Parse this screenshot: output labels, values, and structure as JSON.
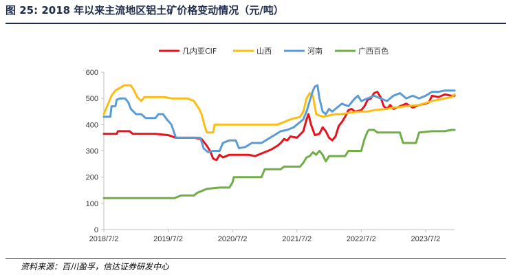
{
  "title": "图 25:  2018 年以来主流地区铝土矿价格变动情况（元/吨）",
  "source": "资料来源：百川盈孚，信达证券研发中心",
  "chart_data": {
    "type": "line",
    "ylim": [
      0,
      600
    ],
    "yticks": [
      0,
      100,
      200,
      300,
      400,
      500,
      600
    ],
    "xlim": [
      2018.5,
      2023.95
    ],
    "xticks": [
      {
        "x": 2018.5,
        "label": "2018/7/2"
      },
      {
        "x": 2019.5,
        "label": "2019/7/2"
      },
      {
        "x": 2020.5,
        "label": "2020/7/2"
      },
      {
        "x": 2021.5,
        "label": "2021/7/2"
      },
      {
        "x": 2022.5,
        "label": "2022/7/2"
      },
      {
        "x": 2023.5,
        "label": "2023/7/2"
      }
    ],
    "grid": false,
    "legend_position": "top",
    "series": [
      {
        "name": "几内亚CIF",
        "color": "#e8121c",
        "points": [
          [
            2018.5,
            365
          ],
          [
            2018.7,
            365
          ],
          [
            2018.72,
            375
          ],
          [
            2018.9,
            375
          ],
          [
            2018.95,
            365
          ],
          [
            2019.3,
            365
          ],
          [
            2019.5,
            360
          ],
          [
            2019.62,
            350
          ],
          [
            2019.9,
            350
          ],
          [
            2020.02,
            345
          ],
          [
            2020.1,
            320
          ],
          [
            2020.15,
            300
          ],
          [
            2020.2,
            270
          ],
          [
            2020.25,
            265
          ],
          [
            2020.3,
            285
          ],
          [
            2020.35,
            275
          ],
          [
            2020.45,
            285
          ],
          [
            2020.6,
            285
          ],
          [
            2020.75,
            285
          ],
          [
            2020.85,
            280
          ],
          [
            2020.95,
            290
          ],
          [
            2021.1,
            305
          ],
          [
            2021.2,
            320
          ],
          [
            2021.25,
            330
          ],
          [
            2021.3,
            345
          ],
          [
            2021.35,
            340
          ],
          [
            2021.4,
            355
          ],
          [
            2021.5,
            350
          ],
          [
            2021.6,
            375
          ],
          [
            2021.65,
            420
          ],
          [
            2021.68,
            440
          ],
          [
            2021.72,
            400
          ],
          [
            2021.78,
            360
          ],
          [
            2021.85,
            365
          ],
          [
            2021.9,
            390
          ],
          [
            2021.95,
            375
          ],
          [
            2022.0,
            350
          ],
          [
            2022.05,
            340
          ],
          [
            2022.1,
            355
          ],
          [
            2022.15,
            395
          ],
          [
            2022.2,
            410
          ],
          [
            2022.25,
            430
          ],
          [
            2022.3,
            455
          ],
          [
            2022.35,
            460
          ],
          [
            2022.4,
            450
          ],
          [
            2022.5,
            455
          ],
          [
            2022.55,
            470
          ],
          [
            2022.6,
            495
          ],
          [
            2022.65,
            500
          ],
          [
            2022.7,
            520
          ],
          [
            2022.75,
            525
          ],
          [
            2022.8,
            505
          ],
          [
            2022.85,
            470
          ],
          [
            2022.9,
            460
          ],
          [
            2022.95,
            475
          ],
          [
            2023.0,
            460
          ],
          [
            2023.1,
            470
          ],
          [
            2023.2,
            480
          ],
          [
            2023.3,
            465
          ],
          [
            2023.4,
            475
          ],
          [
            2023.5,
            480
          ],
          [
            2023.55,
            485
          ],
          [
            2023.6,
            510
          ],
          [
            2023.7,
            505
          ],
          [
            2023.8,
            515
          ],
          [
            2023.9,
            510
          ],
          [
            2023.95,
            510
          ]
        ]
      },
      {
        "name": "山西",
        "color": "#fbbd13",
        "points": [
          [
            2018.5,
            440
          ],
          [
            2018.55,
            470
          ],
          [
            2018.62,
            510
          ],
          [
            2018.68,
            530
          ],
          [
            2018.75,
            540
          ],
          [
            2018.82,
            550
          ],
          [
            2018.92,
            550
          ],
          [
            2018.97,
            530
          ],
          [
            2019.02,
            505
          ],
          [
            2019.08,
            490
          ],
          [
            2019.13,
            505
          ],
          [
            2019.3,
            505
          ],
          [
            2019.45,
            505
          ],
          [
            2019.55,
            500
          ],
          [
            2019.8,
            500
          ],
          [
            2019.9,
            490
          ],
          [
            2019.98,
            460
          ],
          [
            2020.02,
            440
          ],
          [
            2020.06,
            400
          ],
          [
            2020.1,
            370
          ],
          [
            2020.2,
            370
          ],
          [
            2020.22,
            400
          ],
          [
            2020.5,
            400
          ],
          [
            2020.8,
            400
          ],
          [
            2021.0,
            400
          ],
          [
            2021.2,
            400
          ],
          [
            2021.4,
            420
          ],
          [
            2021.55,
            430
          ],
          [
            2021.6,
            450
          ],
          [
            2021.65,
            500
          ],
          [
            2021.7,
            520
          ],
          [
            2021.75,
            510
          ],
          [
            2021.8,
            440
          ],
          [
            2021.9,
            430
          ],
          [
            2022.0,
            435
          ],
          [
            2022.1,
            440
          ],
          [
            2022.2,
            440
          ],
          [
            2022.3,
            445
          ],
          [
            2022.5,
            450
          ],
          [
            2022.6,
            450
          ],
          [
            2022.7,
            455
          ],
          [
            2022.9,
            460
          ],
          [
            2023.0,
            465
          ],
          [
            2023.2,
            470
          ],
          [
            2023.4,
            475
          ],
          [
            2023.6,
            490
          ],
          [
            2023.7,
            495
          ],
          [
            2023.8,
            500
          ],
          [
            2023.9,
            505
          ],
          [
            2023.95,
            515
          ]
        ]
      },
      {
        "name": "河南",
        "color": "#5b9bd5",
        "points": [
          [
            2018.5,
            430
          ],
          [
            2018.55,
            430
          ],
          [
            2018.6,
            430
          ],
          [
            2018.62,
            470
          ],
          [
            2018.68,
            470
          ],
          [
            2018.7,
            495
          ],
          [
            2018.75,
            500
          ],
          [
            2018.83,
            500
          ],
          [
            2018.88,
            485
          ],
          [
            2018.92,
            460
          ],
          [
            2019.0,
            440
          ],
          [
            2019.08,
            440
          ],
          [
            2019.15,
            425
          ],
          [
            2019.3,
            425
          ],
          [
            2019.35,
            440
          ],
          [
            2019.42,
            440
          ],
          [
            2019.48,
            420
          ],
          [
            2019.55,
            400
          ],
          [
            2019.62,
            350
          ],
          [
            2019.8,
            350
          ],
          [
            2020.0,
            350
          ],
          [
            2020.05,
            310
          ],
          [
            2020.12,
            295
          ],
          [
            2020.2,
            300
          ],
          [
            2020.3,
            300
          ],
          [
            2020.35,
            330
          ],
          [
            2020.45,
            340
          ],
          [
            2020.55,
            340
          ],
          [
            2020.6,
            310
          ],
          [
            2020.7,
            315
          ],
          [
            2020.8,
            330
          ],
          [
            2020.95,
            330
          ],
          [
            2021.05,
            345
          ],
          [
            2021.15,
            360
          ],
          [
            2021.25,
            375
          ],
          [
            2021.35,
            380
          ],
          [
            2021.45,
            390
          ],
          [
            2021.55,
            410
          ],
          [
            2021.6,
            420
          ],
          [
            2021.65,
            450
          ],
          [
            2021.7,
            490
          ],
          [
            2021.75,
            530
          ],
          [
            2021.78,
            545
          ],
          [
            2021.82,
            550
          ],
          [
            2021.85,
            500
          ],
          [
            2021.9,
            450
          ],
          [
            2021.95,
            440
          ],
          [
            2022.0,
            460
          ],
          [
            2022.05,
            450
          ],
          [
            2022.1,
            460
          ],
          [
            2022.2,
            480
          ],
          [
            2022.3,
            470
          ],
          [
            2022.4,
            500
          ],
          [
            2022.45,
            510
          ],
          [
            2022.5,
            490
          ],
          [
            2022.6,
            500
          ],
          [
            2022.7,
            510
          ],
          [
            2022.8,
            500
          ],
          [
            2022.9,
            490
          ],
          [
            2023.0,
            510
          ],
          [
            2023.1,
            520
          ],
          [
            2023.2,
            500
          ],
          [
            2023.3,
            510
          ],
          [
            2023.4,
            500
          ],
          [
            2023.5,
            510
          ],
          [
            2023.6,
            525
          ],
          [
            2023.7,
            525
          ],
          [
            2023.8,
            530
          ],
          [
            2023.9,
            530
          ],
          [
            2023.95,
            530
          ]
        ]
      },
      {
        "name": "广西百色",
        "color": "#70ad47",
        "points": [
          [
            2018.5,
            120
          ],
          [
            2018.8,
            120
          ],
          [
            2019.1,
            120
          ],
          [
            2019.4,
            120
          ],
          [
            2019.6,
            120
          ],
          [
            2019.7,
            130
          ],
          [
            2019.9,
            130
          ],
          [
            2019.95,
            140
          ],
          [
            2020.05,
            150
          ],
          [
            2020.1,
            155
          ],
          [
            2020.3,
            160
          ],
          [
            2020.45,
            160
          ],
          [
            2020.5,
            180
          ],
          [
            2020.52,
            200
          ],
          [
            2020.65,
            200
          ],
          [
            2020.8,
            200
          ],
          [
            2020.95,
            200
          ],
          [
            2021.0,
            230
          ],
          [
            2021.25,
            230
          ],
          [
            2021.3,
            240
          ],
          [
            2021.55,
            240
          ],
          [
            2021.6,
            255
          ],
          [
            2021.65,
            275
          ],
          [
            2021.7,
            280
          ],
          [
            2021.75,
            295
          ],
          [
            2021.8,
            285
          ],
          [
            2021.85,
            300
          ],
          [
            2021.9,
            285
          ],
          [
            2021.95,
            260
          ],
          [
            2022.0,
            280
          ],
          [
            2022.25,
            280
          ],
          [
            2022.3,
            300
          ],
          [
            2022.5,
            300
          ],
          [
            2022.55,
            345
          ],
          [
            2022.6,
            375
          ],
          [
            2022.62,
            380
          ],
          [
            2022.7,
            380
          ],
          [
            2022.75,
            370
          ],
          [
            2023.0,
            370
          ],
          [
            2023.1,
            370
          ],
          [
            2023.15,
            330
          ],
          [
            2023.35,
            330
          ],
          [
            2023.4,
            370
          ],
          [
            2023.6,
            375
          ],
          [
            2023.8,
            375
          ],
          [
            2023.9,
            380
          ],
          [
            2023.95,
            380
          ]
        ]
      }
    ]
  }
}
